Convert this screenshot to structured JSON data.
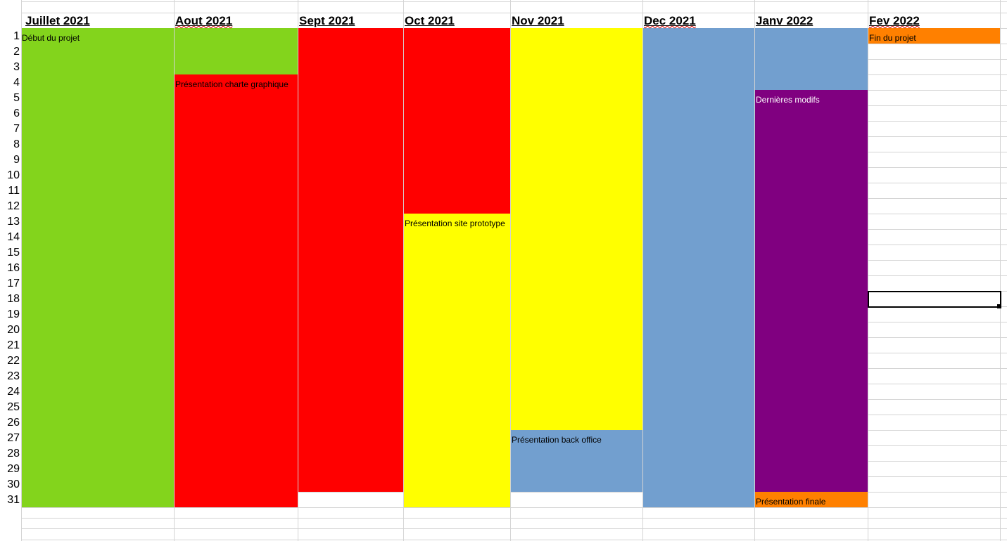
{
  "months": [
    {
      "label": "Juillet 2021",
      "spell_flag": false
    },
    {
      "label": "Aout 2021",
      "spell_flag": true
    },
    {
      "label": "Sept 2021",
      "spell_flag": false
    },
    {
      "label": "Oct 2021",
      "spell_flag": false
    },
    {
      "label": "Nov 2021",
      "spell_flag": false
    },
    {
      "label": "Dec 2021",
      "spell_flag": true
    },
    {
      "label": "Janv 2022",
      "spell_flag": false
    },
    {
      "label": "Fev 2022",
      "spell_flag": true
    }
  ],
  "row_numbers": [
    "1",
    "2",
    "3",
    "4",
    "5",
    "6",
    "7",
    "8",
    "9",
    "10",
    "11",
    "12",
    "13",
    "14",
    "15",
    "16",
    "17",
    "18",
    "19",
    "20",
    "21",
    "22",
    "23",
    "24",
    "25",
    "26",
    "27",
    "28",
    "29",
    "30",
    "31"
  ],
  "phases": [
    {
      "name": "debut",
      "label": "Début du projet",
      "color": "#83d41c",
      "start": {
        "month": 0,
        "day": 1
      },
      "end": {
        "month": 1,
        "day": 3
      }
    },
    {
      "name": "charte",
      "label": "Présentation charte graphique",
      "color": "#ff0000",
      "start": {
        "month": 1,
        "day": 4
      },
      "end": {
        "month": 3,
        "day": 12
      }
    },
    {
      "name": "prototype",
      "label": "Présentation site prototype",
      "color": "#ffff00",
      "start": {
        "month": 3,
        "day": 13
      },
      "end": {
        "month": 4,
        "day": 26
      }
    },
    {
      "name": "backoffice",
      "label": "Présentation back office",
      "color": "#729fcf",
      "start": {
        "month": 4,
        "day": 27
      },
      "end": {
        "month": 6,
        "day": 4
      }
    },
    {
      "name": "modifs",
      "label": "Dernières modifs",
      "color": "#800080",
      "start": {
        "month": 6,
        "day": 5
      },
      "end": {
        "month": 6,
        "day": 30
      }
    },
    {
      "name": "finale",
      "label": "Présentation finale",
      "color": "#ff8000",
      "start": {
        "month": 6,
        "day": 31
      },
      "end": {
        "month": 6,
        "day": 31
      }
    },
    {
      "name": "fin",
      "label": "Fin du projet",
      "color": "#ff8000",
      "start": {
        "month": 7,
        "day": 1
      },
      "end": {
        "month": 7,
        "day": 1
      }
    }
  ],
  "selected_cell": {
    "month": "Fev 2022",
    "day": "18"
  }
}
